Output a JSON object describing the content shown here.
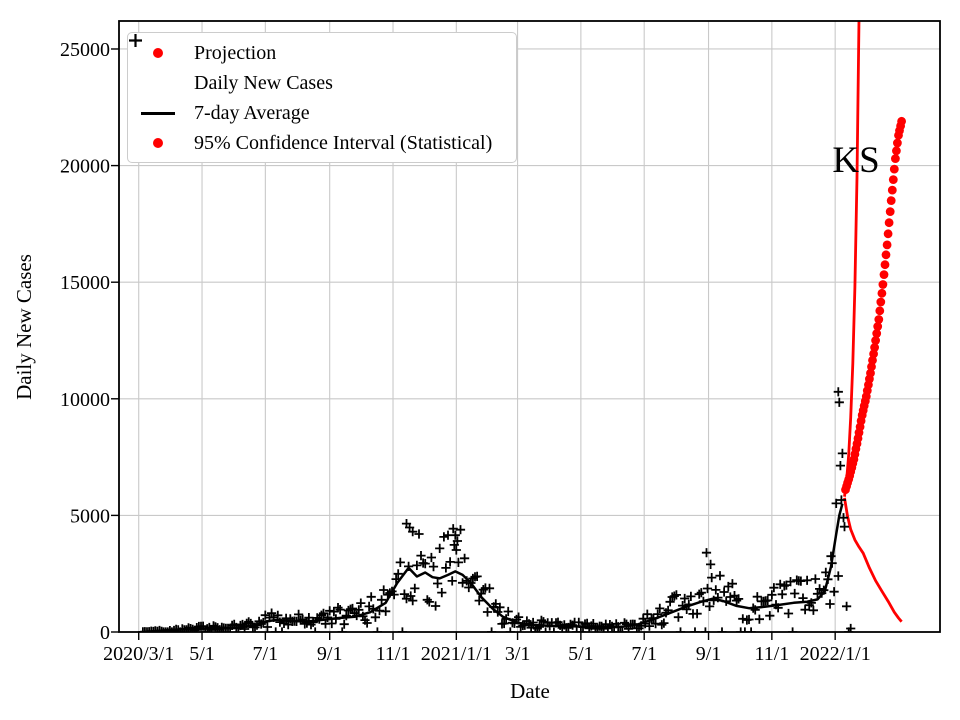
{
  "chart_data": {
    "type": "scatter+line",
    "title": "",
    "xlabel": "Date",
    "ylabel": "Daily New Cases",
    "xlim": [
      "2020-02-11",
      "2022-04-12"
    ],
    "ylim": [
      0,
      26200
    ],
    "grid": true,
    "annotation": {
      "text": "KS"
    },
    "colors": {
      "projection": "#ff0000",
      "cases": "#000000",
      "grid": "#c9c9c9",
      "frame": "#000000",
      "legend_border": "#cccccc",
      "background": "#ffffff"
    },
    "legend": {
      "position": "upper-left",
      "items": [
        {
          "marker": "dot",
          "color": "#ff0000",
          "label": "Projection"
        },
        {
          "marker": "plus",
          "color": "#000000",
          "label": "Daily New Cases"
        },
        {
          "marker": "line",
          "color": "#000000",
          "label": "7-day Average"
        },
        {
          "marker": "dot",
          "color": "#ff0000",
          "label": "95% Confidence Interval (Statistical)"
        }
      ]
    },
    "xticks": [
      {
        "label": "2020/3/1",
        "date": "2020-03-01"
      },
      {
        "label": "5/1",
        "date": "2020-05-01"
      },
      {
        "label": "7/1",
        "date": "2020-07-01"
      },
      {
        "label": "9/1",
        "date": "2020-09-01"
      },
      {
        "label": "11/1",
        "date": "2020-11-01"
      },
      {
        "label": "2021/1/1",
        "date": "2021-01-01"
      },
      {
        "label": "3/1",
        "date": "2021-03-01"
      },
      {
        "label": "5/1",
        "date": "2021-05-01"
      },
      {
        "label": "7/1",
        "date": "2021-07-01"
      },
      {
        "label": "9/1",
        "date": "2021-09-01"
      },
      {
        "label": "11/1",
        "date": "2021-11-01"
      },
      {
        "label": "2022/1/1",
        "date": "2022-01-01"
      }
    ],
    "yticks": [
      {
        "label": "0",
        "value": 0
      },
      {
        "label": "5000",
        "value": 5000
      },
      {
        "label": "10000",
        "value": 10000
      },
      {
        "label": "15000",
        "value": 15000
      },
      {
        "label": "20000",
        "value": 20000
      },
      {
        "label": "25000",
        "value": 25000
      }
    ],
    "series": {
      "avg_7day": {
        "name": "7-day Average",
        "color": "#000000",
        "dates": [
          "2020-03-06",
          "2020-03-15",
          "2020-04-01",
          "2020-04-20",
          "2020-05-05",
          "2020-05-20",
          "2020-06-05",
          "2020-06-20",
          "2020-07-01",
          "2020-07-12",
          "2020-07-25",
          "2020-08-10",
          "2020-08-25",
          "2020-09-10",
          "2020-09-25",
          "2020-10-10",
          "2020-10-25",
          "2020-11-05",
          "2020-11-16",
          "2020-11-24",
          "2020-12-02",
          "2020-12-09",
          "2020-12-16",
          "2020-12-24",
          "2020-12-31",
          "2021-01-07",
          "2021-01-15",
          "2021-01-25",
          "2021-02-05",
          "2021-02-15",
          "2021-03-01",
          "2021-03-15",
          "2021-04-01",
          "2021-04-20",
          "2021-05-10",
          "2021-05-25",
          "2021-06-10",
          "2021-06-25",
          "2021-07-10",
          "2021-07-25",
          "2021-08-10",
          "2021-08-25",
          "2021-09-05",
          "2021-09-15",
          "2021-09-28",
          "2021-10-10",
          "2021-10-25",
          "2021-11-08",
          "2021-11-22",
          "2021-12-05",
          "2021-12-15",
          "2021-12-22",
          "2021-12-28",
          "2022-01-02",
          "2022-01-05",
          "2022-01-08"
        ],
        "values": [
          5,
          25,
          90,
          130,
          150,
          165,
          190,
          280,
          450,
          520,
          470,
          450,
          520,
          600,
          650,
          850,
          1250,
          2100,
          2750,
          2380,
          2550,
          2350,
          2300,
          2450,
          2600,
          2450,
          2100,
          1500,
          1000,
          650,
          400,
          300,
          270,
          250,
          230,
          215,
          225,
          330,
          550,
          800,
          1080,
          1300,
          1430,
          1330,
          1120,
          1020,
          1080,
          1160,
          1250,
          1300,
          1400,
          1750,
          2800,
          4200,
          5000,
          5500
        ]
      },
      "daily_scatter": {
        "name": "Daily New Cases",
        "color": "#000000",
        "derived_from": "avg_7day",
        "start": "2020-03-05",
        "end": "2022-01-10",
        "step_days": 2,
        "spread_min": 0.45,
        "spread_max": 1.78,
        "zero_prob": 0.085,
        "seed": 42,
        "extra_points": [
          {
            "date": "2020-11-14",
            "value": 4650
          },
          {
            "date": "2020-11-17",
            "value": 4480
          },
          {
            "date": "2020-11-20",
            "value": 4300
          },
          {
            "date": "2020-12-29",
            "value": 4430
          },
          {
            "date": "2020-12-31",
            "value": 4150
          },
          {
            "date": "2021-01-02",
            "value": 3900
          },
          {
            "date": "2021-08-30",
            "value": 3400
          },
          {
            "date": "2021-09-03",
            "value": 2900
          },
          {
            "date": "2021-12-28",
            "value": 3250
          },
          {
            "date": "2022-01-04",
            "value": 10300
          },
          {
            "date": "2022-01-05",
            "value": 9850
          },
          {
            "date": "2022-01-07",
            "value": 5660
          },
          {
            "date": "2022-01-09",
            "value": 4900
          },
          {
            "date": "2022-01-12",
            "value": 1100
          },
          {
            "date": "2022-01-14",
            "value": 0
          },
          {
            "date": "2022-01-16",
            "value": 150
          }
        ]
      },
      "projection": {
        "name": "Projection",
        "color": "#ff0000",
        "marker": "dot",
        "dates": [
          "2022-01-11",
          "2022-01-15",
          "2022-01-19",
          "2022-01-23",
          "2022-01-27",
          "2022-01-31",
          "2022-02-04",
          "2022-02-08",
          "2022-02-12",
          "2022-02-16",
          "2022-02-20",
          "2022-02-24",
          "2022-02-28",
          "2022-03-03",
          "2022-03-06"
        ],
        "values": [
          6100,
          6700,
          7400,
          8300,
          9300,
          10100,
          11100,
          12200,
          13400,
          14900,
          16600,
          18500,
          20300,
          21300,
          21900
        ]
      },
      "ci_upper": {
        "name": "95% CI upper",
        "color": "#ff0000",
        "dates": [
          "2022-01-10",
          "2022-01-12",
          "2022-01-14",
          "2022-01-16",
          "2022-01-18",
          "2022-01-20",
          "2022-01-22",
          "2022-01-24",
          "2022-01-25"
        ],
        "values": [
          5800,
          6500,
          7600,
          9200,
          11500,
          14800,
          19500,
          26300,
          30500
        ]
      },
      "ci_lower": {
        "name": "95% CI lower",
        "color": "#ff0000",
        "dates": [
          "2022-01-10",
          "2022-01-13",
          "2022-01-16",
          "2022-01-20",
          "2022-01-24",
          "2022-01-28",
          "2022-02-03",
          "2022-02-09",
          "2022-02-15",
          "2022-02-21",
          "2022-02-27",
          "2022-03-03",
          "2022-03-06"
        ],
        "values": [
          5750,
          4950,
          4400,
          3950,
          3650,
          3380,
          2750,
          2200,
          1750,
          1320,
          850,
          600,
          440
        ]
      }
    }
  }
}
